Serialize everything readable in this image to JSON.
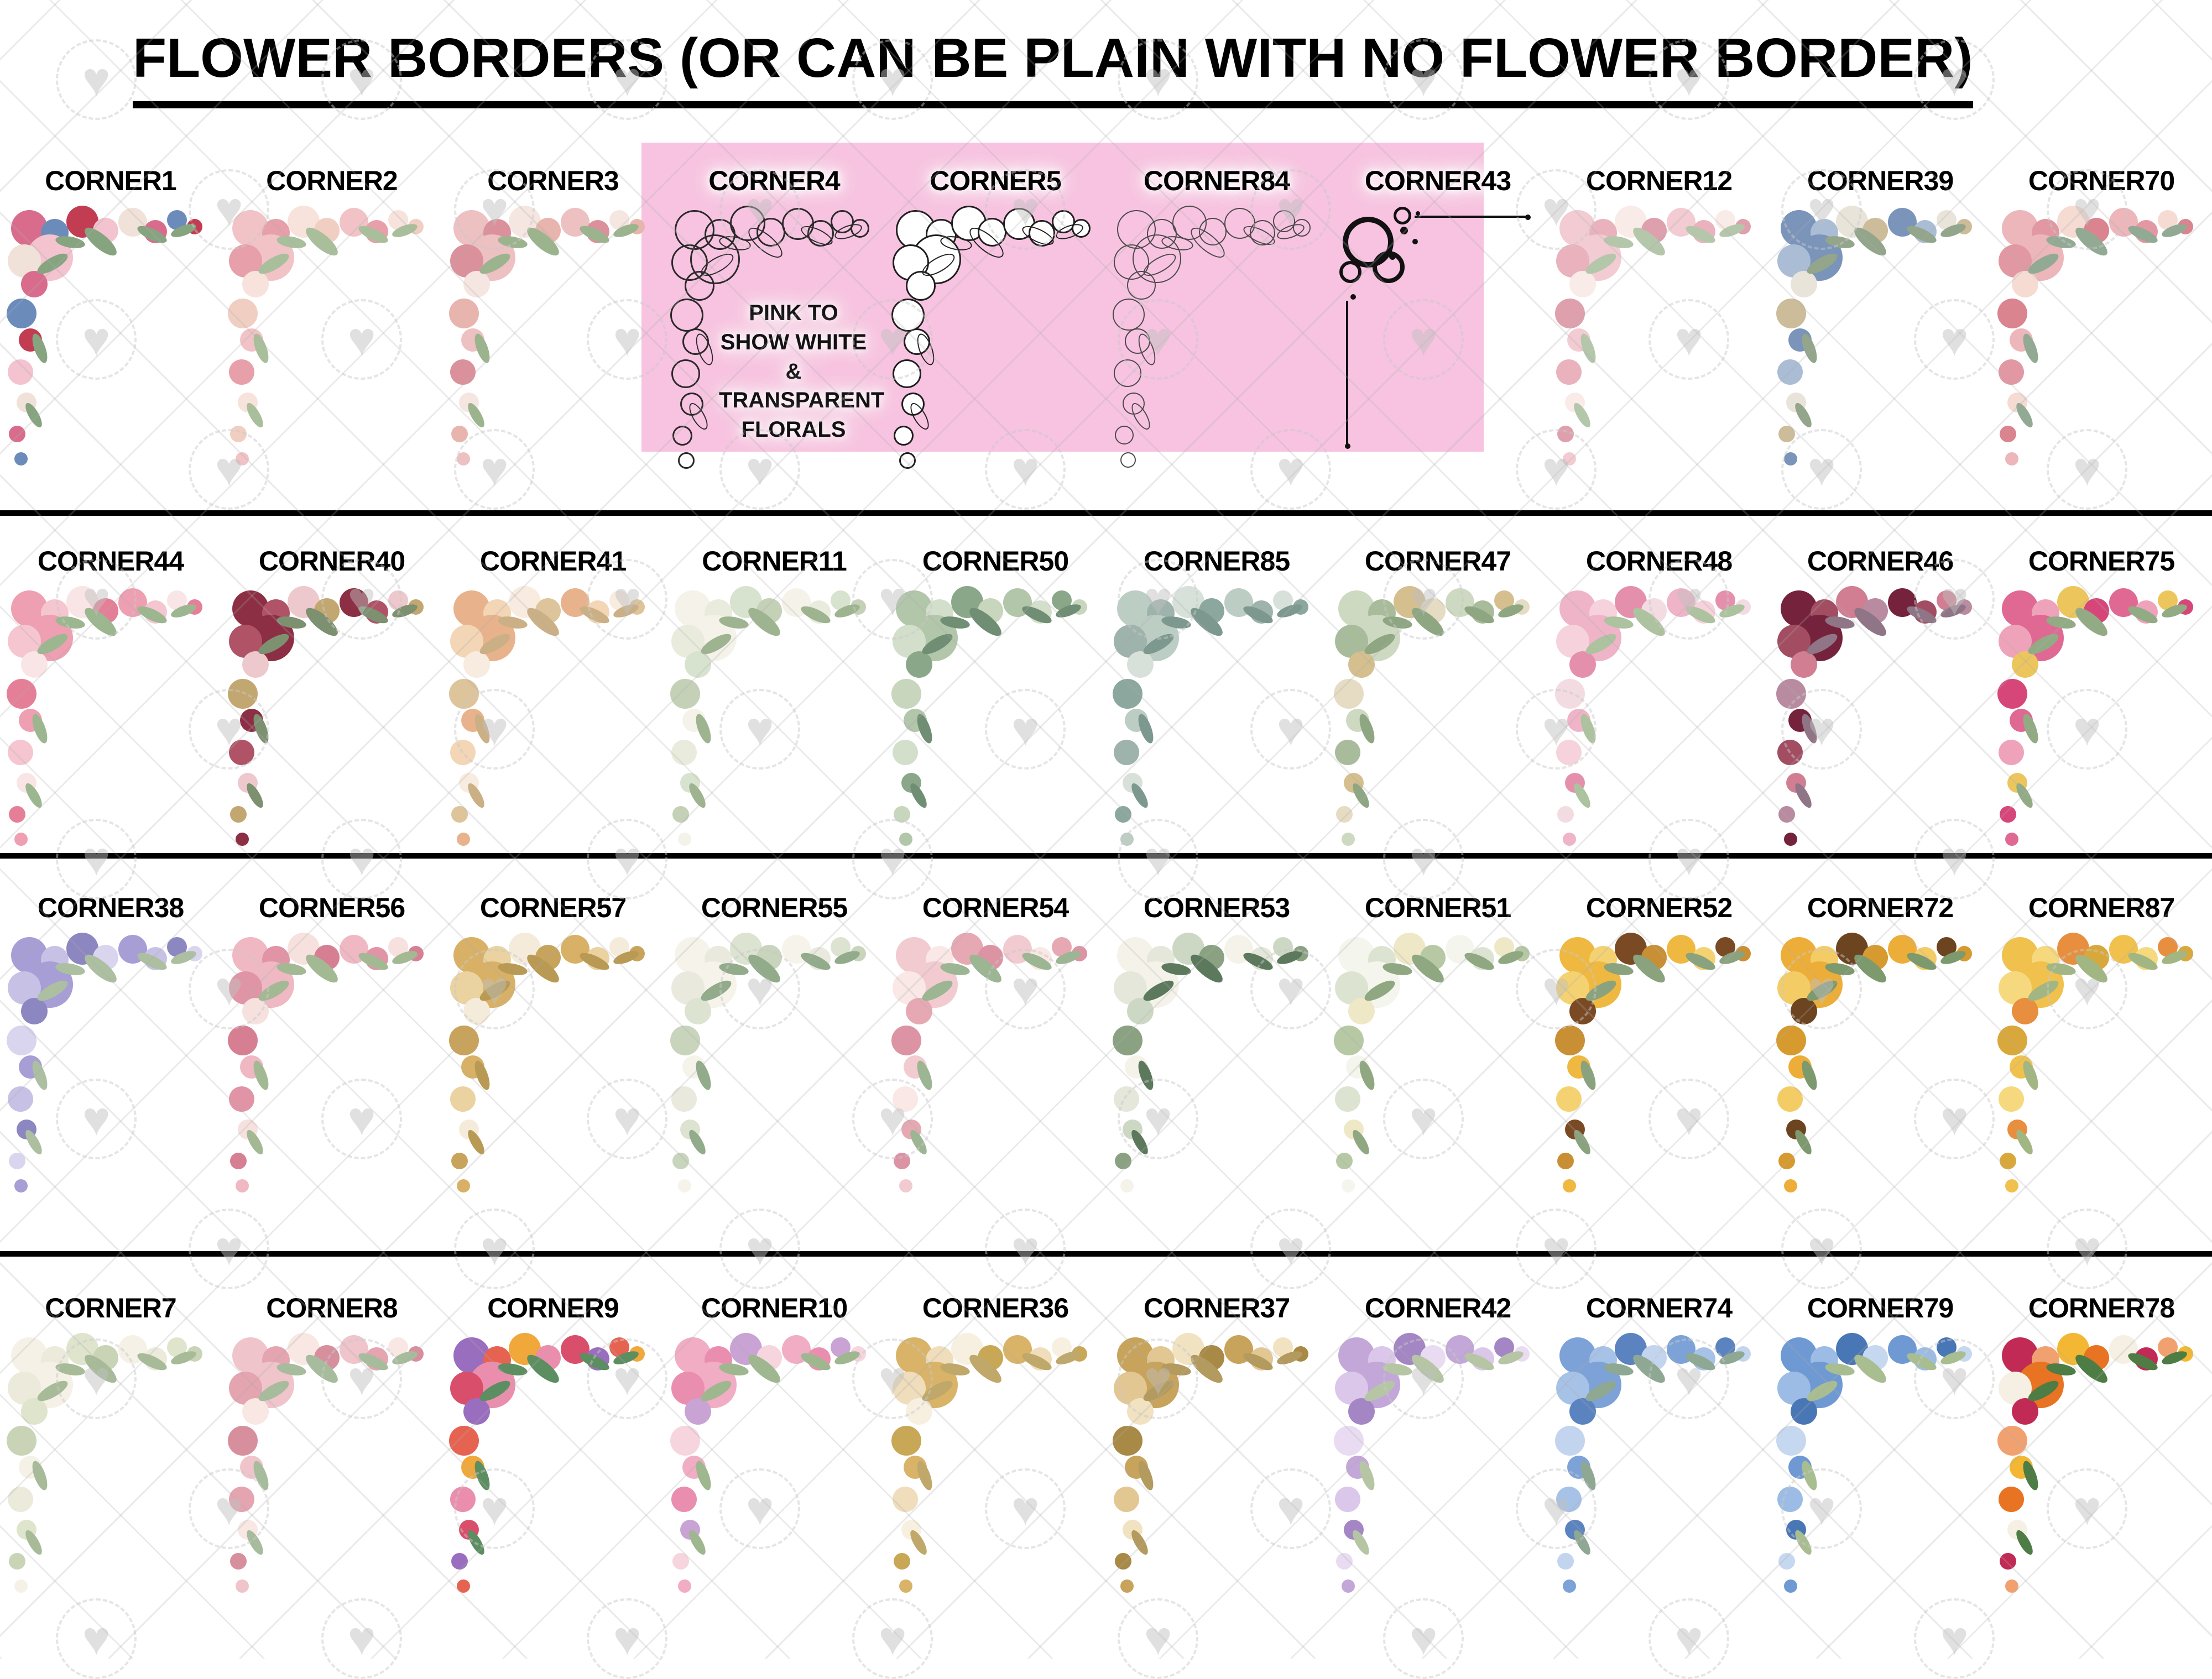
{
  "title": "FLOWER BORDERS (OR CAN BE PLAIN WITH NO FLOWER BORDER)",
  "pink_box": {
    "note": "PINK TO SHOW WHITE & TRANSPARENT FLORALS",
    "background": "#F7C3E0"
  },
  "watermark": {
    "heart_icon": "heart",
    "heart_color": "#C0C0C0",
    "line_color": "#ABABAB"
  },
  "rows": [
    {
      "corners": [
        {
          "label": "CORNER1",
          "style": "floral",
          "on_pink": false,
          "palette": [
            "#d96c8c",
            "#6b8cbb",
            "#c23c52",
            "#f3c3cf",
            "#f0e2d8",
            "#86a47f"
          ]
        },
        {
          "label": "CORNER2",
          "style": "floral",
          "on_pink": false,
          "palette": [
            "#f2c3c6",
            "#e79fa9",
            "#f7e2dc",
            "#f0cfc2",
            "#a9bf9c"
          ]
        },
        {
          "label": "CORNER3",
          "style": "floral",
          "on_pink": false,
          "palette": [
            "#edc0c2",
            "#db919b",
            "#f6e6e1",
            "#e8b4ae",
            "#9bb48e"
          ]
        },
        {
          "label": "CORNER4",
          "style": "outline",
          "on_pink": true,
          "palette": [
            "#2a2a2a"
          ]
        },
        {
          "label": "CORNER5",
          "style": "outline-white",
          "on_pink": true,
          "palette": [
            "#1f1f1f"
          ]
        },
        {
          "label": "CORNER84",
          "style": "sketch",
          "on_pink": true,
          "palette": [
            "#4a4a4a"
          ]
        },
        {
          "label": "CORNER43",
          "style": "ornament",
          "on_pink": true,
          "palette": [
            "#111111"
          ]
        },
        {
          "label": "CORNER12",
          "style": "floral",
          "on_pink": false,
          "palette": [
            "#f2ccd2",
            "#e9b2bc",
            "#f9ebe8",
            "#dfa0ad",
            "#b5c7ab"
          ]
        },
        {
          "label": "CORNER39",
          "style": "floral",
          "on_pink": false,
          "palette": [
            "#7b94ba",
            "#aabdd5",
            "#e9e4d9",
            "#ccbc9a",
            "#93a58b"
          ]
        },
        {
          "label": "CORNER70",
          "style": "floral",
          "on_pink": false,
          "palette": [
            "#edb6ba",
            "#e298a2",
            "#f6dbd3",
            "#d9848f",
            "#92aa94"
          ]
        }
      ]
    },
    {
      "corners": [
        {
          "label": "CORNER44",
          "style": "floral",
          "on_pink": false,
          "palette": [
            "#ee9fb1",
            "#f5c6d0",
            "#f9e5e5",
            "#e57f97",
            "#9cb790"
          ]
        },
        {
          "label": "CORNER40",
          "style": "floral",
          "on_pink": false,
          "palette": [
            "#8d2f44",
            "#b05366",
            "#edc8cc",
            "#c2a770",
            "#7d9070"
          ]
        },
        {
          "label": "CORNER41",
          "style": "floral",
          "on_pink": false,
          "palette": [
            "#e8b38c",
            "#f3d6b6",
            "#f8ebdf",
            "#ddc49b",
            "#cbb086"
          ]
        },
        {
          "label": "CORNER11",
          "style": "floral",
          "on_pink": false,
          "palette": [
            "#f5f2e9",
            "#e9ecdc",
            "#d8e3cf",
            "#c4d1b7",
            "#9eb490"
          ]
        },
        {
          "label": "CORNER50",
          "style": "floral",
          "on_pink": false,
          "palette": [
            "#b2c6aa",
            "#d4dfcb",
            "#8aa889",
            "#c7d6bd",
            "#6f8e73"
          ]
        },
        {
          "label": "CORNER85",
          "style": "floral",
          "on_pink": false,
          "palette": [
            "#bccdc4",
            "#9db3ac",
            "#d7e1d9",
            "#8ca79e",
            "#7d998f"
          ]
        },
        {
          "label": "CORNER47",
          "style": "floral",
          "on_pink": false,
          "palette": [
            "#ced9c1",
            "#a8bc9c",
            "#d5bf8e",
            "#e5dcc3",
            "#8ea782"
          ]
        },
        {
          "label": "CORNER48",
          "style": "floral",
          "on_pink": false,
          "palette": [
            "#efb4c8",
            "#f6d2dd",
            "#e490ac",
            "#f2dce2",
            "#adc29e"
          ]
        },
        {
          "label": "CORNER46",
          "style": "floral",
          "on_pink": false,
          "palette": [
            "#75233c",
            "#a24d62",
            "#d17e93",
            "#b88ba0",
            "#8f7586"
          ]
        },
        {
          "label": "CORNER75",
          "style": "floral",
          "on_pink": false,
          "palette": [
            "#df6992",
            "#efa3ba",
            "#ecc65d",
            "#d74679",
            "#92ab85"
          ]
        }
      ]
    },
    {
      "corners": [
        {
          "label": "CORNER38",
          "style": "floral",
          "on_pink": false,
          "palette": [
            "#a69ed5",
            "#c6c1e5",
            "#8c86c1",
            "#d9d5ee",
            "#adbfa1"
          ]
        },
        {
          "label": "CORNER56",
          "style": "floral",
          "on_pink": false,
          "palette": [
            "#efb8c3",
            "#e194a5",
            "#f7e1df",
            "#d67f93",
            "#a3b994"
          ]
        },
        {
          "label": "CORNER57",
          "style": "floral",
          "on_pink": false,
          "palette": [
            "#d8b166",
            "#ebd2a1",
            "#f5ebda",
            "#c8a35c",
            "#b89a55"
          ]
        },
        {
          "label": "CORNER55",
          "style": "floral",
          "on_pink": false,
          "palette": [
            "#f6f3eb",
            "#e9e9de",
            "#dce3d0",
            "#c8d5bc",
            "#92ab8b"
          ]
        },
        {
          "label": "CORNER54",
          "style": "floral",
          "on_pink": false,
          "palette": [
            "#f2cbd1",
            "#f9e8e5",
            "#e6a9b4",
            "#dc94a4",
            "#9cb593"
          ]
        },
        {
          "label": "CORNER53",
          "style": "floral",
          "on_pink": false,
          "palette": [
            "#f5f3e9",
            "#e4e7d9",
            "#cdd8c4",
            "#8ba282",
            "#5c795d"
          ]
        },
        {
          "label": "CORNER51",
          "style": "floral",
          "on_pink": false,
          "palette": [
            "#f4f5ed",
            "#dce4d1",
            "#efe8c7",
            "#b7c9a4",
            "#8fa881"
          ]
        },
        {
          "label": "CORNER52",
          "style": "floral",
          "on_pink": false,
          "palette": [
            "#efb841",
            "#f5d271",
            "#7a4a24",
            "#c98f35",
            "#8aa27e"
          ]
        },
        {
          "label": "CORNER72",
          "style": "floral",
          "on_pink": false,
          "palette": [
            "#edae39",
            "#f4cc65",
            "#6d4420",
            "#d79a2e",
            "#7d996e"
          ]
        },
        {
          "label": "CORNER87",
          "style": "floral",
          "on_pink": false,
          "palette": [
            "#f1c14d",
            "#f6d97e",
            "#e78f3e",
            "#d9a83c",
            "#a2b683"
          ]
        }
      ]
    },
    {
      "corners": [
        {
          "label": "CORNER7",
          "style": "floral",
          "on_pink": false,
          "palette": [
            "#f5f1e7",
            "#ebeadb",
            "#dfe4cd",
            "#c9d4b6",
            "#a8bb99"
          ]
        },
        {
          "label": "CORNER8",
          "style": "floral",
          "on_pink": false,
          "palette": [
            "#f0c4cb",
            "#e4a4b0",
            "#f8e7e3",
            "#d78f9e",
            "#a7bc9c"
          ]
        },
        {
          "label": "CORNER9",
          "style": "floral",
          "on_pink": false,
          "palette": [
            "#9a6ebf",
            "#e76351",
            "#f1a83a",
            "#eb8ead",
            "#d94f6b",
            "#5c8e61"
          ]
        },
        {
          "label": "CORNER10",
          "style": "floral",
          "on_pink": false,
          "palette": [
            "#f1adc3",
            "#ea8eaf",
            "#c8a3d3",
            "#f6d5df",
            "#9fb78f"
          ]
        },
        {
          "label": "CORNER36",
          "style": "floral",
          "on_pink": false,
          "palette": [
            "#d8b368",
            "#efddbc",
            "#f7f0e1",
            "#c8a857",
            "#bfa869"
          ]
        },
        {
          "label": "CORNER37",
          "style": "floral",
          "on_pink": false,
          "palette": [
            "#c7a35b",
            "#e2c793",
            "#f1e2c1",
            "#a88946",
            "#b39a5e"
          ]
        },
        {
          "label": "CORNER42",
          "style": "floral",
          "on_pink": false,
          "palette": [
            "#c2a7d8",
            "#dbc7e9",
            "#a386c3",
            "#e9dcf2",
            "#b6c6a5"
          ]
        },
        {
          "label": "CORNER74",
          "style": "floral",
          "on_pink": false,
          "palette": [
            "#7ca2d7",
            "#a7c2e7",
            "#5a83bf",
            "#c3d5ee",
            "#8ea894"
          ]
        },
        {
          "label": "CORNER79",
          "style": "floral",
          "on_pink": false,
          "palette": [
            "#6e99d3",
            "#9cbce5",
            "#4976b4",
            "#c6d8ef",
            "#a8be91"
          ]
        },
        {
          "label": "CORNER78",
          "style": "floral",
          "on_pink": false,
          "palette": [
            "#c12a54",
            "#f1a170",
            "#f3b733",
            "#e77323",
            "#f5f0e3",
            "#4d7d45"
          ]
        }
      ]
    }
  ]
}
